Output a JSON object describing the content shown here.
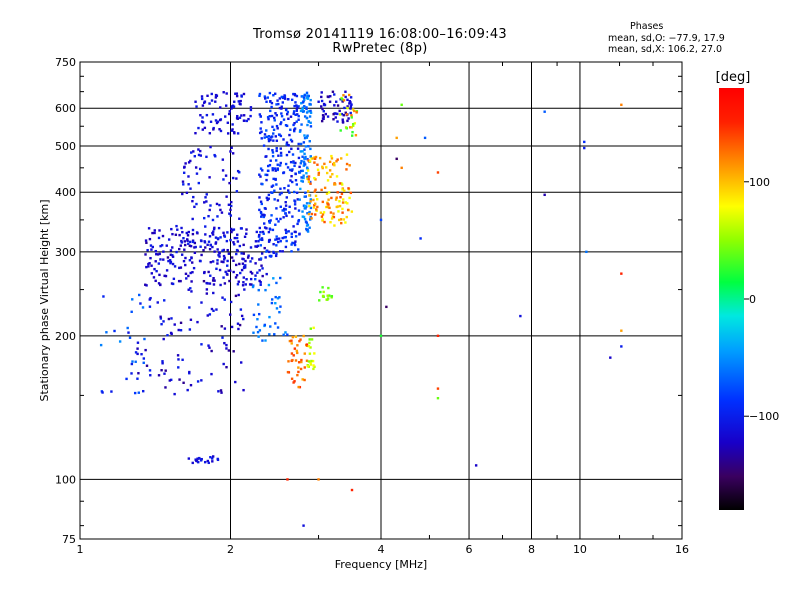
{
  "figure": {
    "title_line1": "Tromsø 20141119 16:08:00–16:09:43",
    "title_line2": "RwPretec (8p)",
    "stats_heading": "Phases",
    "stats_o": "mean, sd,O: −77.9, 17.9",
    "stats_x": "mean, sd,X: 106.2, 27.0"
  },
  "colorbar": {
    "label": "[deg]",
    "min": -180,
    "max": 180,
    "ticks": [
      {
        "value": 100,
        "label": "100"
      },
      {
        "value": 0,
        "label": "0"
      },
      {
        "value": -100,
        "label": "−100"
      }
    ]
  },
  "chart_data": {
    "type": "scatter",
    "xlabel": "Frequency [MHz]",
    "ylabel": "Stationary phase Virtual Height [km]",
    "x_scale": "log",
    "y_scale": "log",
    "xlim": [
      1,
      16
    ],
    "ylim": [
      75,
      750
    ],
    "grid": true,
    "x_ticks": [
      {
        "value": 1,
        "label": "1"
      },
      {
        "value": 2,
        "label": "2"
      },
      {
        "value": 4,
        "label": "4"
      },
      {
        "value": 6,
        "label": "6"
      },
      {
        "value": 8,
        "label": "8"
      },
      {
        "value": 10,
        "label": "10"
      },
      {
        "value": 16,
        "label": "16"
      }
    ],
    "x_gridlines": [
      2,
      4,
      6,
      8,
      10
    ],
    "y_ticks": [
      {
        "value": 75,
        "label": "75"
      },
      {
        "value": 100,
        "label": "100"
      },
      {
        "value": 200,
        "label": "200"
      },
      {
        "value": 300,
        "label": "300"
      },
      {
        "value": 400,
        "label": "400"
      },
      {
        "value": 500,
        "label": "500"
      },
      {
        "value": 600,
        "label": "600"
      },
      {
        "value": 750,
        "label": "750"
      }
    ],
    "y_gridlines": [
      100,
      200,
      300,
      400,
      500,
      600
    ],
    "series": [
      {
        "x_range": [
          1.3,
          2.15
        ],
        "y_range": [
          150,
          330
        ],
        "phase_range": [
          -140,
          -95
        ],
        "count": 150
      },
      {
        "x_range": [
          1.35,
          2.4
        ],
        "y_range": [
          255,
          340
        ],
        "phase_range": [
          -130,
          -100
        ],
        "count": 220
      },
      {
        "x_range": [
          1.6,
          2.1
        ],
        "y_range": [
          310,
          500
        ],
        "phase_range": [
          -125,
          -95
        ],
        "count": 90
      },
      {
        "x_range": [
          1.7,
          2.2
        ],
        "y_range": [
          530,
          650
        ],
        "phase_range": [
          -125,
          -100
        ],
        "count": 80
      },
      {
        "x_range": [
          2.28,
          2.5
        ],
        "y_range": [
          290,
          650
        ],
        "phase_range": [
          -110,
          -70
        ],
        "count": 150
      },
      {
        "x_range": [
          2.5,
          2.75
        ],
        "y_range": [
          300,
          650
        ],
        "phase_range": [
          -115,
          -75
        ],
        "count": 160
      },
      {
        "x_range": [
          2.75,
          2.9
        ],
        "y_range": [
          330,
          650
        ],
        "phase_range": [
          -80,
          -40
        ],
        "count": 120
      },
      {
        "x_range": [
          2.85,
          3.5
        ],
        "y_range": [
          340,
          480
        ],
        "phase_range": [
          70,
          140
        ],
        "count": 130
      },
      {
        "x_range": [
          3.0,
          3.5
        ],
        "y_range": [
          560,
          650
        ],
        "phase_range": [
          -140,
          -100
        ],
        "count": 60
      },
      {
        "x_range": [
          3.3,
          3.6
        ],
        "y_range": [
          520,
          640
        ],
        "phase_range": [
          20,
          130
        ],
        "count": 25
      },
      {
        "x_range": [
          2.6,
          2.85
        ],
        "y_range": [
          155,
          200
        ],
        "phase_range": [
          100,
          150
        ],
        "count": 40
      },
      {
        "x_range": [
          2.85,
          2.95
        ],
        "y_range": [
          170,
          210
        ],
        "phase_range": [
          40,
          80
        ],
        "count": 20
      },
      {
        "x_range": [
          3.0,
          3.2
        ],
        "y_range": [
          235,
          255
        ],
        "phase_range": [
          30,
          60
        ],
        "count": 15
      },
      {
        "x_range": [
          2.2,
          2.6
        ],
        "y_range": [
          195,
          265
        ],
        "phase_range": [
          -80,
          -40
        ],
        "count": 40
      },
      {
        "x_range": [
          1.1,
          1.35
        ],
        "y_range": [
          150,
          250
        ],
        "phase_range": [
          -110,
          -50
        ],
        "count": 25
      },
      {
        "x_range": [
          1.65,
          1.9
        ],
        "y_range": [
          108,
          112
        ],
        "phase_range": [
          -120,
          -100
        ],
        "count": 20
      }
    ],
    "points": [
      {
        "x": 4.4,
        "y": 610,
        "phase": 40
      },
      {
        "x": 4.3,
        "y": 520,
        "phase": 110
      },
      {
        "x": 4.3,
        "y": 470,
        "phase": -150
      },
      {
        "x": 4.4,
        "y": 450,
        "phase": 120
      },
      {
        "x": 4.9,
        "y": 520,
        "phase": -70
      },
      {
        "x": 5.2,
        "y": 440,
        "phase": 140
      },
      {
        "x": 4.0,
        "y": 350,
        "phase": -80
      },
      {
        "x": 4.1,
        "y": 230,
        "phase": -150
      },
      {
        "x": 4.0,
        "y": 200,
        "phase": 20
      },
      {
        "x": 4.8,
        "y": 320,
        "phase": -90
      },
      {
        "x": 5.2,
        "y": 200,
        "phase": 150
      },
      {
        "x": 5.2,
        "y": 155,
        "phase": 140
      },
      {
        "x": 5.2,
        "y": 148,
        "phase": 40
      },
      {
        "x": 6.2,
        "y": 107,
        "phase": -120
      },
      {
        "x": 7.6,
        "y": 220,
        "phase": -110
      },
      {
        "x": 8.5,
        "y": 590,
        "phase": -70
      },
      {
        "x": 8.5,
        "y": 395,
        "phase": -130
      },
      {
        "x": 10.2,
        "y": 510,
        "phase": -90
      },
      {
        "x": 10.2,
        "y": 495,
        "phase": -100
      },
      {
        "x": 10.3,
        "y": 300,
        "phase": -60
      },
      {
        "x": 11.5,
        "y": 180,
        "phase": -120
      },
      {
        "x": 12.1,
        "y": 610,
        "phase": 120
      },
      {
        "x": 12.1,
        "y": 270,
        "phase": 150
      },
      {
        "x": 12.1,
        "y": 205,
        "phase": 110
      },
      {
        "x": 12.1,
        "y": 190,
        "phase": -100
      },
      {
        "x": 2.6,
        "y": 100,
        "phase": 150
      },
      {
        "x": 3.5,
        "y": 95,
        "phase": 150
      },
      {
        "x": 2.8,
        "y": 80,
        "phase": -110
      },
      {
        "x": 3.0,
        "y": 100,
        "phase": 120
      }
    ]
  }
}
